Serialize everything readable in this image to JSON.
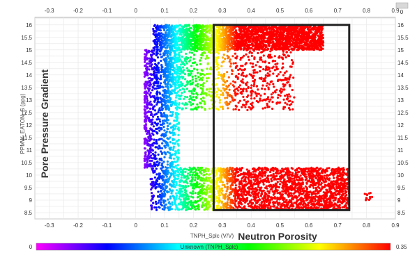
{
  "chart_data": {
    "type": "scatter",
    "xlabel": "TNPH_Splc (V/V)",
    "ylabel": "PPMW_EATON_S (ppg)",
    "xlim": [
      -0.35,
      0.9
    ],
    "ylim": [
      8.25,
      16.3
    ],
    "x_ticks": [
      "-0.3",
      "-0.2",
      "-0.1",
      "0",
      "0.1",
      "0.2",
      "0.3",
      "0.4",
      "0.5",
      "0.6",
      "0.7",
      "0.8",
      "0.9"
    ],
    "y_ticks": [
      "8.5",
      "9",
      "9.5",
      "10",
      "10.5",
      "11",
      "11.5",
      "12",
      "12.5",
      "13",
      "13.5",
      "14",
      "14.5",
      "15",
      "15.5",
      "16"
    ],
    "top_right_tick": "0",
    "grid": true,
    "annotations": {
      "y_annotation": "Pore Pressure Gradient",
      "x_annotation": "Neutron Porosity"
    },
    "highlight_box": {
      "x": [
        0.27,
        0.74
      ],
      "y": [
        8.6,
        16.0
      ]
    },
    "colorbar": {
      "label": "Unknown (TNPH_Splc)",
      "min": "0",
      "max": "0.35",
      "colors": [
        "#ff00ff",
        "#0000ff",
        "#00ffff",
        "#00ff00",
        "#ffff00",
        "#ff0000"
      ]
    },
    "color_by": "TNPH_Splc",
    "point_clusters": [
      {
        "y_range": [
          8.6,
          10.3
        ],
        "x_range": [
          0.05,
          0.74
        ],
        "density": "high"
      },
      {
        "y_range": [
          15.0,
          16.0
        ],
        "x_range": [
          0.06,
          0.65
        ],
        "density": "high"
      },
      {
        "y_range": [
          12.6,
          15.0
        ],
        "x_range": [
          0.1,
          0.55
        ],
        "density": "medium"
      },
      {
        "y_range": [
          10.3,
          15.0
        ],
        "x_range": [
          0.03,
          0.15
        ],
        "density": "medium"
      },
      {
        "y_range": [
          9.0,
          9.3
        ],
        "x_range": [
          0.79,
          0.82
        ],
        "density": "low"
      }
    ]
  }
}
